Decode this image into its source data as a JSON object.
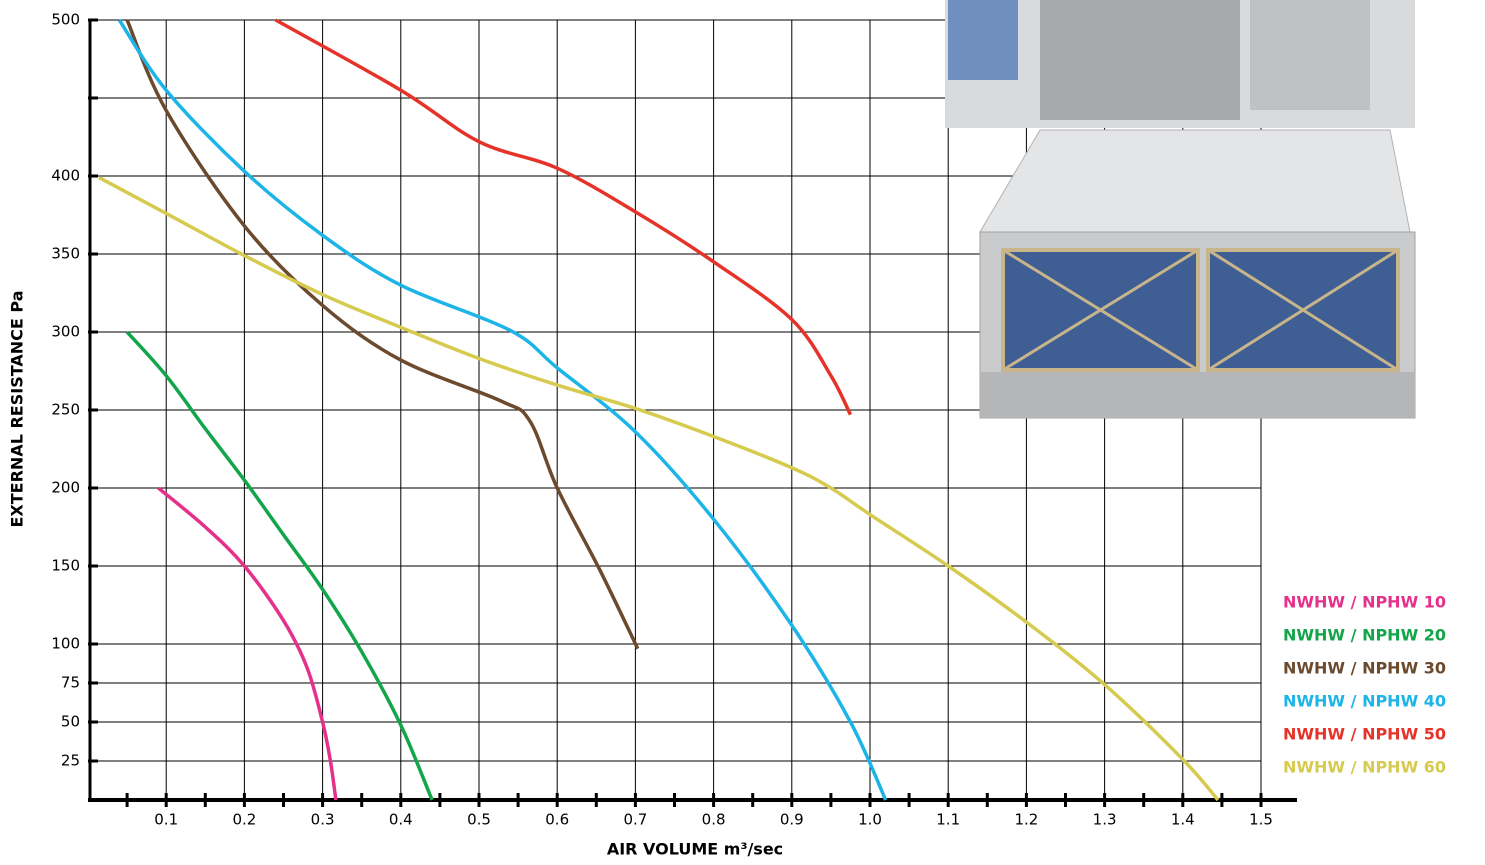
{
  "chart_data": {
    "type": "line",
    "xlabel": "AIR VOLUME m³/sec",
    "ylabel": "EXTERNAL RESISTANCE Pa",
    "xlim": [
      0,
      1.546
    ],
    "ylim": [
      0,
      500
    ],
    "xticks": [
      0.1,
      0.2,
      0.3,
      0.4,
      0.5,
      0.6,
      0.7,
      0.8,
      0.9,
      {
        "value": 1,
        "label": "1.0"
      },
      1.1,
      1.2,
      1.3,
      1.4,
      1.5
    ],
    "xminorticks": [
      0.05,
      0.15,
      0.25,
      0.35,
      0.45,
      0.55,
      0.65,
      0.75,
      0.85,
      0.95,
      1.05,
      1.15,
      1.25,
      1.35,
      1.45
    ],
    "yticks": [
      25,
      50,
      75,
      100,
      150,
      200,
      250,
      300,
      350,
      400,
      {
        "value": 450,
        "label": null
      },
      500
    ],
    "grid": true,
    "legend": "lower right",
    "series": [
      {
        "name": "NWHW / NPHW 10",
        "color": "#e5318b",
        "x": [
          0.09,
          0.15,
          0.2,
          0.25,
          0.28,
          0.3,
          0.31,
          0.317
        ],
        "values": [
          200,
          175,
          150,
          115,
          85,
          50,
          25,
          0
        ]
      },
      {
        "name": "NWHW / NPHW 20",
        "color": "#13a54a",
        "x": [
          0.05,
          0.1,
          0.15,
          0.2,
          0.25,
          0.3,
          0.35,
          0.4,
          0.44
        ],
        "values": [
          300,
          272,
          238,
          205,
          170,
          135,
          95,
          48,
          0
        ]
      },
      {
        "name": "NWHW / NPHW 30",
        "color": "#6b4a2e",
        "x": [
          0.05,
          0.1,
          0.2,
          0.3,
          0.4,
          0.527,
          0.565,
          0.6,
          0.655,
          0.703
        ],
        "values": [
          500,
          442,
          368,
          317,
          282,
          256,
          243,
          200,
          147,
          97
        ]
      },
      {
        "name": "NWHW / NPHW 40",
        "color": "#1db4e8",
        "x": [
          0.04,
          0.1,
          0.2,
          0.3,
          0.4,
          0.54,
          0.6,
          0.7,
          0.8,
          0.9,
          0.975,
          1.02
        ],
        "values": [
          500,
          455,
          403,
          362,
          330,
          301,
          277,
          236,
          180,
          112,
          50,
          0
        ]
      },
      {
        "name": "NWHW / NPHW 50",
        "color": "#e5332a",
        "x": [
          0.24,
          0.4,
          0.5,
          0.6,
          0.7,
          0.8,
          0.9,
          0.95,
          0.975
        ],
        "values": [
          500,
          455,
          422,
          405,
          377,
          345,
          308,
          272,
          247
        ]
      },
      {
        "name": "NWHW / NPHW 60",
        "color": "#d6ca4f",
        "x": [
          0.014,
          0.1,
          0.2,
          0.3,
          0.4,
          0.5,
          0.6,
          0.7,
          0.8,
          0.9,
          0.95,
          1.0,
          1.1,
          1.2,
          1.3,
          1.4,
          1.445
        ],
        "values": [
          399,
          376,
          349,
          324,
          303,
          283,
          266,
          251,
          233,
          213,
          200,
          183,
          150,
          114,
          74,
          26,
          0
        ]
      }
    ]
  }
}
